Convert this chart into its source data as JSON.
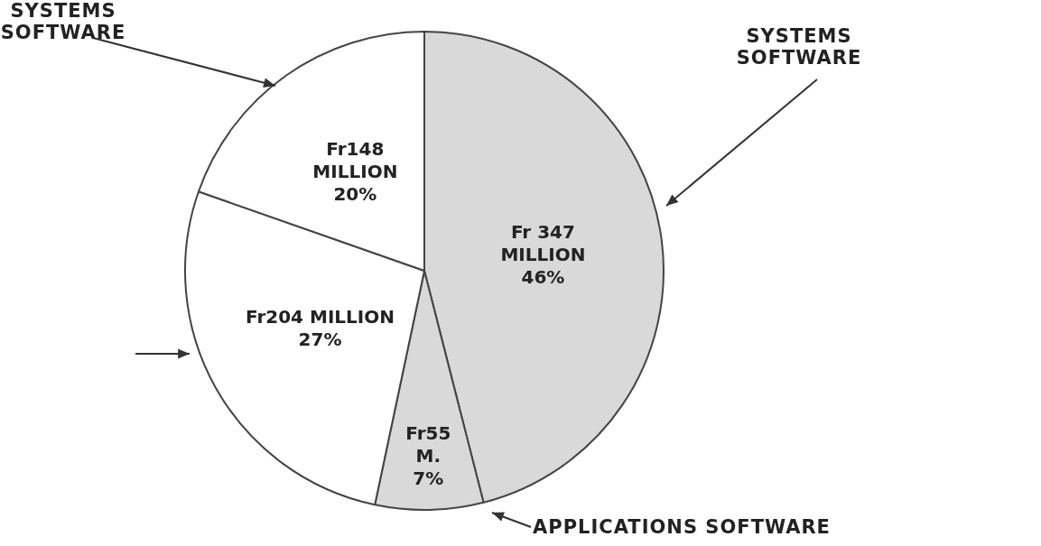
{
  "chart_data": {
    "type": "pie",
    "categories": [
      "SYSTEMS SOFTWARE",
      "APPLICATIONS SOFTWARE",
      null,
      "SYSTEMS SOFTWARE"
    ],
    "values": [
      347,
      55,
      204,
      148
    ],
    "colors": [
      "#d9d9d9",
      "#d9d9d9",
      "#ffffff",
      "#ffffff"
    ],
    "value_labels": [
      "Fr 347\nMILLION\n46%",
      "Fr55\nM.\n7%",
      "Fr204 MILLION\n27%",
      "Fr148\nMILLION\n20%"
    ],
    "legend": false
  }
}
